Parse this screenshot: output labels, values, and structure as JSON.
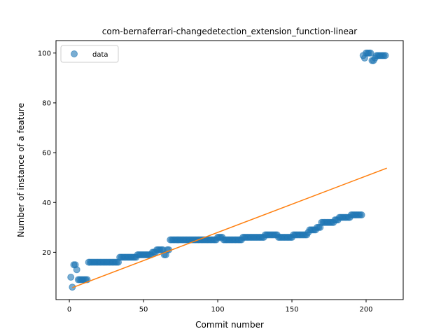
{
  "chart_data": {
    "type": "scatter",
    "title": "com-bernaferrari-changedetection_extension_function-linear",
    "xlabel": "Commit number",
    "ylabel": "Number of instance of a feature",
    "xlim": [
      -9,
      225
    ],
    "ylim": [
      1,
      105
    ],
    "xticks": [
      0,
      50,
      100,
      150,
      200
    ],
    "yticks": [
      20,
      40,
      60,
      80,
      100
    ],
    "grid": false,
    "legend": {
      "position": "top-left",
      "entries": [
        "data"
      ]
    },
    "colors": {
      "data": "#1f77b4",
      "fit": "#ff7f0e"
    },
    "series": [
      {
        "name": "data",
        "kind": "scatter",
        "x": [
          1,
          2,
          3,
          4,
          5,
          6,
          7,
          8,
          9,
          10,
          11,
          12,
          13,
          14,
          15,
          16,
          17,
          18,
          19,
          20,
          21,
          22,
          23,
          24,
          25,
          26,
          27,
          28,
          29,
          30,
          31,
          32,
          33,
          34,
          35,
          36,
          37,
          38,
          39,
          40,
          41,
          42,
          43,
          44,
          45,
          46,
          47,
          48,
          49,
          50,
          51,
          52,
          53,
          54,
          55,
          56,
          57,
          58,
          59,
          60,
          61,
          62,
          63,
          64,
          65,
          66,
          67,
          68,
          69,
          70,
          71,
          72,
          73,
          74,
          75,
          76,
          77,
          78,
          79,
          80,
          81,
          82,
          83,
          84,
          85,
          86,
          87,
          88,
          89,
          90,
          91,
          92,
          93,
          94,
          95,
          96,
          97,
          98,
          99,
          100,
          101,
          102,
          103,
          104,
          105,
          106,
          107,
          108,
          109,
          110,
          111,
          112,
          113,
          114,
          115,
          116,
          117,
          118,
          119,
          120,
          121,
          122,
          123,
          124,
          125,
          126,
          127,
          128,
          129,
          130,
          131,
          132,
          133,
          134,
          135,
          136,
          137,
          138,
          139,
          140,
          141,
          142,
          143,
          144,
          145,
          146,
          147,
          148,
          149,
          150,
          151,
          152,
          153,
          154,
          155,
          156,
          157,
          158,
          159,
          160,
          161,
          162,
          163,
          164,
          165,
          166,
          167,
          168,
          169,
          170,
          171,
          172,
          173,
          174,
          175,
          176,
          177,
          178,
          179,
          180,
          181,
          182,
          183,
          184,
          185,
          186,
          187,
          188,
          189,
          190,
          191,
          192,
          193,
          194,
          195,
          196,
          197,
          198,
          199,
          200,
          201,
          202,
          203,
          204,
          205,
          206,
          207,
          208,
          209,
          210,
          211,
          212,
          213
        ],
        "y": [
          10,
          6,
          15,
          15,
          13,
          9,
          9,
          9,
          9,
          9,
          9,
          9,
          16,
          16,
          16,
          16,
          16,
          16,
          16,
          16,
          16,
          16,
          16,
          16,
          16,
          16,
          16,
          16,
          16,
          16,
          16,
          16,
          16,
          18,
          18,
          18,
          18,
          18,
          18,
          18,
          18,
          18,
          18,
          18,
          18,
          19,
          19,
          19,
          19,
          19,
          19,
          19,
          19,
          19,
          19,
          20,
          20,
          20,
          21,
          21,
          21,
          21,
          21,
          19,
          19,
          21,
          21,
          25,
          25,
          25,
          25,
          25,
          25,
          25,
          25,
          25,
          25,
          25,
          25,
          25,
          25,
          25,
          25,
          25,
          25,
          25,
          25,
          25,
          25,
          25,
          25,
          25,
          25,
          25,
          25,
          25,
          25,
          25,
          25,
          26,
          26,
          26,
          26,
          25,
          25,
          25,
          25,
          25,
          25,
          25,
          25,
          25,
          25,
          25,
          25,
          25,
          26,
          26,
          26,
          26,
          26,
          26,
          26,
          26,
          26,
          26,
          26,
          26,
          26,
          26,
          26,
          27,
          27,
          27,
          27,
          27,
          27,
          27,
          27,
          27,
          26,
          26,
          26,
          26,
          26,
          26,
          26,
          26,
          26,
          26,
          27,
          27,
          27,
          27,
          27,
          27,
          27,
          27,
          27,
          27,
          28,
          29,
          29,
          29,
          29,
          29,
          30,
          30,
          30,
          32,
          32,
          32,
          32,
          32,
          32,
          32,
          32,
          32,
          33,
          33,
          33,
          34,
          34,
          34,
          34,
          34,
          34,
          34,
          34,
          35,
          35,
          35,
          35,
          35,
          35,
          35,
          35,
          99,
          98,
          100,
          100,
          100,
          100,
          97,
          97,
          98,
          99,
          99,
          99,
          99,
          99,
          99,
          99
        ]
      },
      {
        "name": "",
        "kind": "line",
        "x": [
          2,
          214
        ],
        "y": [
          5.8,
          53.8
        ]
      }
    ]
  }
}
